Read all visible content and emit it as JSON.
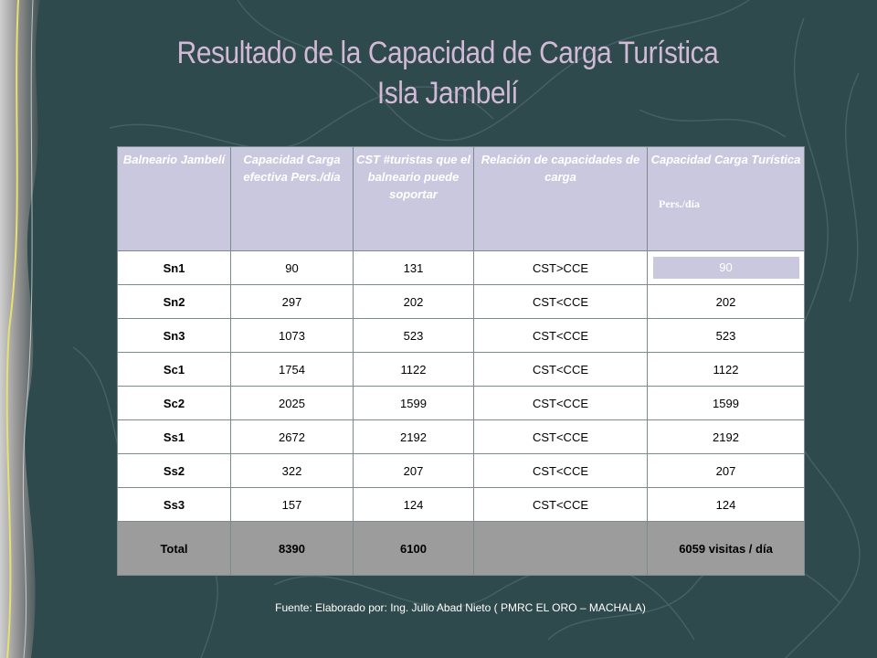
{
  "slide": {
    "title_line1": "Resultado de la Capacidad de Carga Turística",
    "title_line2": "Isla Jambelí",
    "colors": {
      "background": "#2e4a4c",
      "title": "#d2b9d6",
      "header": "#c9c8de",
      "total_row": "#9c9c9c"
    }
  },
  "table": {
    "headers": [
      "Balneario Jambelí",
      "Capacidad Carga efectiva Pers./día",
      "CST #turistas que el balneario puede soportar",
      "Relación de capacidades de carga",
      "Capacidad Carga Turística"
    ],
    "header_units": "Pers./día",
    "rows": [
      {
        "name": "Sn1",
        "cce": "90",
        "cst": "131",
        "relation": "CST>CCE",
        "cct": "90"
      },
      {
        "name": "Sn2",
        "cce": "297",
        "cst": "202",
        "relation": "CST<CCE",
        "cct": "202"
      },
      {
        "name": "Sn3",
        "cce": "1073",
        "cst": "523",
        "relation": "CST<CCE",
        "cct": "523"
      },
      {
        "name": "Sc1",
        "cce": "1754",
        "cst": "1122",
        "relation": "CST<CCE",
        "cct": "1122"
      },
      {
        "name": "Sc2",
        "cce": "2025",
        "cst": "1599",
        "relation": "CST<CCE",
        "cct": "1599"
      },
      {
        "name": "Ss1",
        "cce": "2672",
        "cst": "2192",
        "relation": "CST<CCE",
        "cct": "2192"
      },
      {
        "name": "Ss2",
        "cce": "322",
        "cst": "207",
        "relation": "CST<CCE",
        "cct": "207"
      },
      {
        "name": "Ss3",
        "cce": "157",
        "cst": "124",
        "relation": "CST<CCE",
        "cct": "124"
      }
    ],
    "total": {
      "name": "Total",
      "cce": "8390",
      "cst": "6100",
      "relation": "",
      "cct": "6059 visitas / día"
    }
  },
  "source": "Fuente: Elaborado por: Ing. Julio Abad Nieto ( PMRC EL ORO – MACHALA)"
}
